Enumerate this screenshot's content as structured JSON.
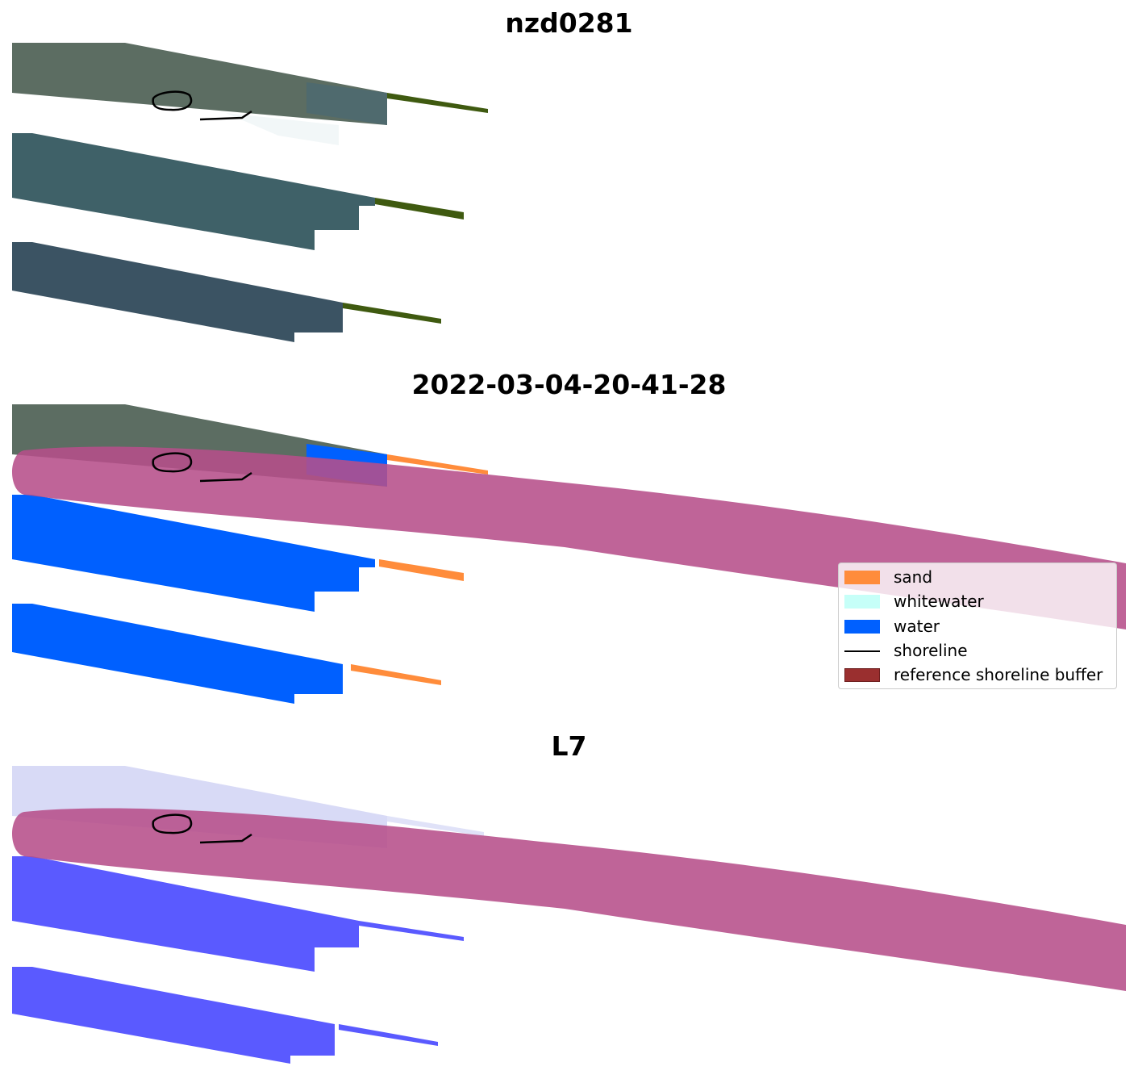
{
  "figure": {
    "titles": {
      "top": "nzd0281",
      "middle": "2022-03-04-20-41-28",
      "bottom": "L7"
    }
  },
  "legend": {
    "items": [
      {
        "label": "sand",
        "color": "#ff8c3b",
        "kind": "patch"
      },
      {
        "label": "whitewater",
        "color": "#c6fff8",
        "kind": "patch"
      },
      {
        "label": "water",
        "color": "#0060ff",
        "kind": "patch"
      },
      {
        "label": "shoreline",
        "color": "#000000",
        "kind": "line"
      },
      {
        "label": "reference shoreline buffer",
        "color": "#9a2f2f",
        "kind": "patch"
      }
    ]
  },
  "colors": {
    "imagery_dark": "#4d6060",
    "imagery_teal": "#3f5f66",
    "vegetation_strip": "#3f5a10",
    "water": "#0060ff",
    "sand": "#ff8c3b",
    "buffer_overlay": "#b64f8a",
    "index_blue": "#5a5aff",
    "index_pale": "#d8daf6"
  }
}
